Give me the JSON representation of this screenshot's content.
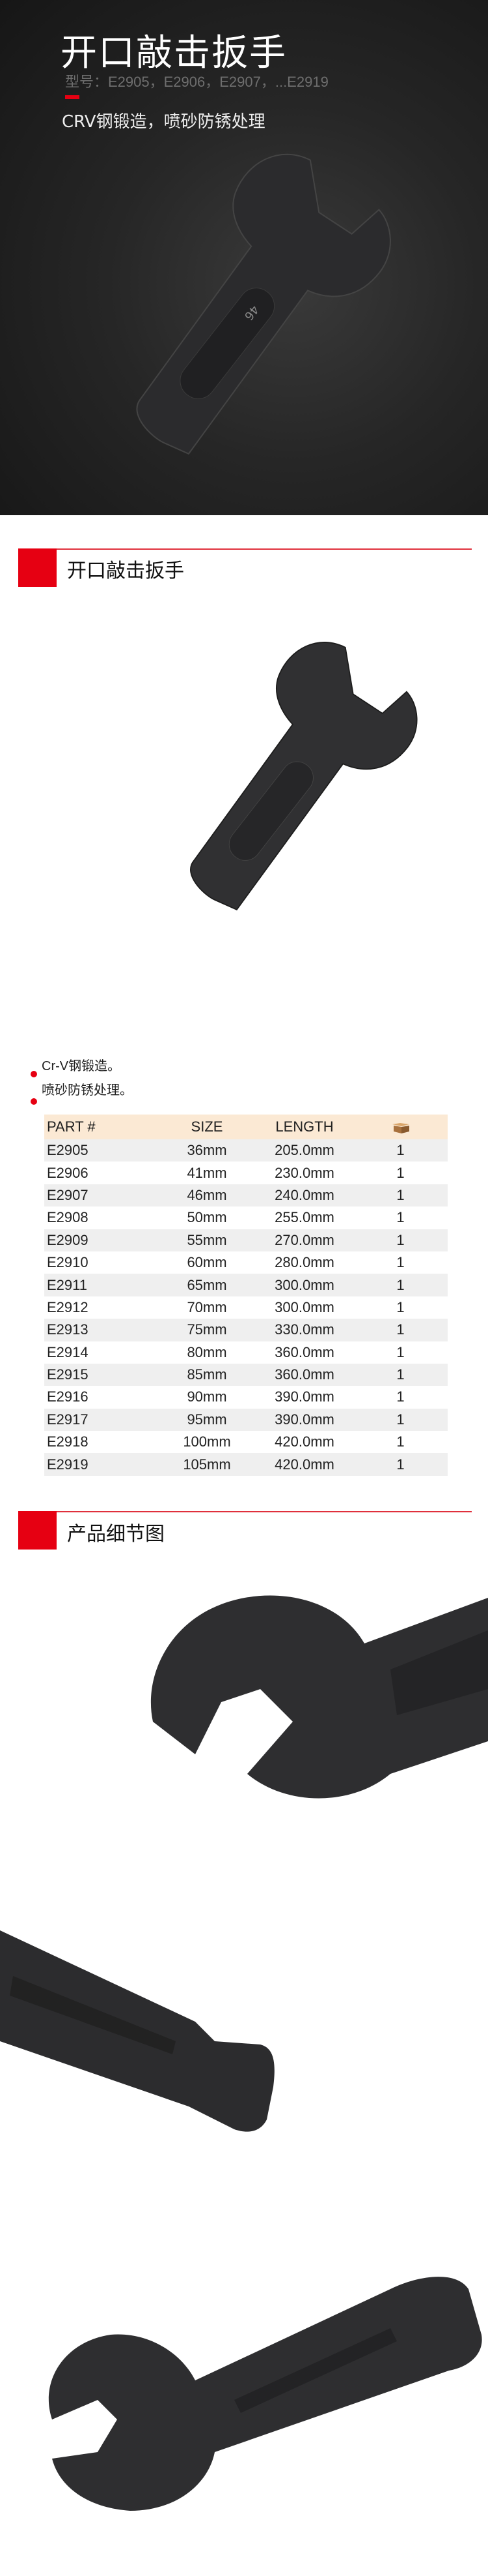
{
  "hero": {
    "title": "开口敲击扳手",
    "models": "型号：E2905，E2906，E2907，...E2919",
    "subtitle": "CRV钢锻造，喷砂防锈处理",
    "wrench_marking": "46"
  },
  "section1": {
    "title": "开口敲击扳手"
  },
  "features": [
    "Cr-V钢锻造。",
    "喷砂防锈处理。"
  ],
  "table": {
    "headers": [
      "PART #",
      "SIZE",
      "LENGTH"
    ],
    "qty_icon": "carton-box-icon",
    "rows": [
      [
        "E2905",
        "36mm",
        "205.0mm",
        "1"
      ],
      [
        "E2906",
        "41mm",
        "230.0mm",
        "1"
      ],
      [
        "E2907",
        "46mm",
        "240.0mm",
        "1"
      ],
      [
        "E2908",
        "50mm",
        "255.0mm",
        "1"
      ],
      [
        "E2909",
        "55mm",
        "270.0mm",
        "1"
      ],
      [
        "E2910",
        "60mm",
        "280.0mm",
        "1"
      ],
      [
        "E2911",
        "65mm",
        "300.0mm",
        "1"
      ],
      [
        "E2912",
        "70mm",
        "300.0mm",
        "1"
      ],
      [
        "E2913",
        "75mm",
        "330.0mm",
        "1"
      ],
      [
        "E2914",
        "80mm",
        "360.0mm",
        "1"
      ],
      [
        "E2915",
        "85mm",
        "360.0mm",
        "1"
      ],
      [
        "E2916",
        "90mm",
        "390.0mm",
        "1"
      ],
      [
        "E2917",
        "95mm",
        "390.0mm",
        "1"
      ],
      [
        "E2918",
        "100mm",
        "420.0mm",
        "1"
      ],
      [
        "E2919",
        "105mm",
        "420.0mm",
        "1"
      ]
    ]
  },
  "section2": {
    "title": "产品细节图"
  },
  "colors": {
    "accent": "#e60012",
    "table_header": "#fbe9d4",
    "row_alt": "#efefef",
    "hero_bg": "#262626"
  }
}
